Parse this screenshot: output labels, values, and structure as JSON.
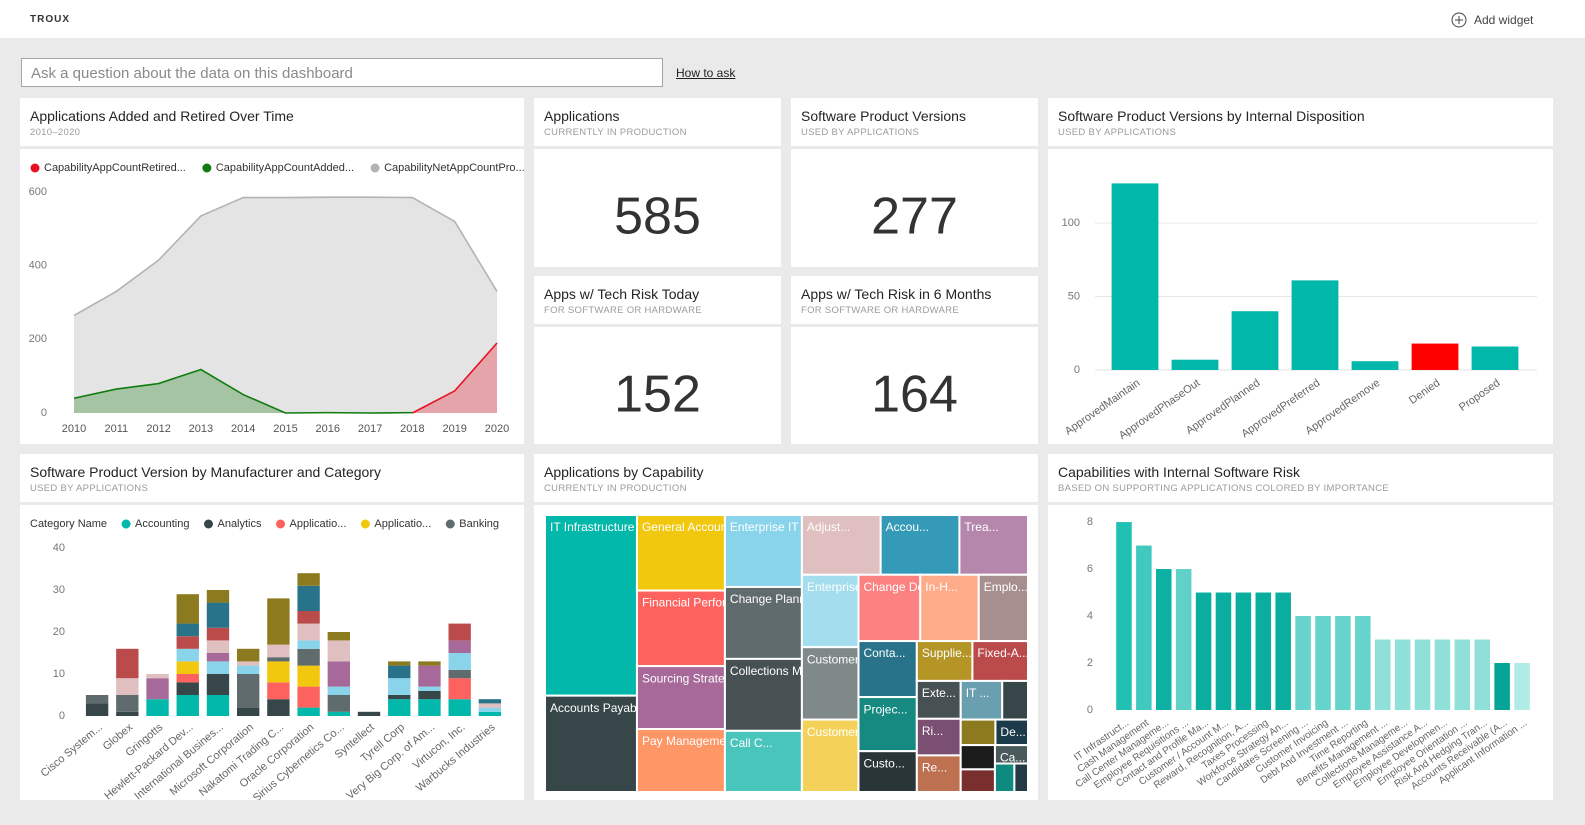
{
  "header": {
    "brand": "TROUX",
    "add_widget": "Add widget"
  },
  "qna": {
    "placeholder": "Ask a question about the data on this dashboard",
    "help": "How to ask"
  },
  "chart_data": [
    {
      "type": "area",
      "title": "Applications Added and Retired Over Time",
      "subtitle": "2010–2020",
      "x": [
        2010,
        2011,
        2012,
        2013,
        2014,
        2015,
        2016,
        2017,
        2018,
        2019,
        2020
      ],
      "xlim": [
        2010,
        2020
      ],
      "xticks": [
        2010,
        2011,
        2012,
        2013,
        2014,
        2015,
        2016,
        2017,
        2018,
        2019,
        2020
      ],
      "ylim": [
        0,
        600
      ],
      "yticks": [
        0,
        200,
        400,
        600
      ],
      "grid": false,
      "series": [
        {
          "name": "CapabilityAppCountRetired...",
          "color": "#e81123",
          "values": [
            null,
            null,
            null,
            null,
            null,
            null,
            null,
            null,
            0,
            60,
            190
          ]
        },
        {
          "name": "CapabilityAppCountAdded...",
          "color": "#107c10",
          "values": [
            40,
            65,
            80,
            118,
            50,
            0,
            1,
            0,
            1,
            null,
            null
          ]
        },
        {
          "name": "CapabilityNetAppCountPro...",
          "color": "#b3b3b3",
          "values": [
            265,
            330,
            415,
            535,
            585,
            585,
            586,
            586,
            585,
            520,
            330
          ]
        }
      ]
    },
    {
      "type": "card",
      "title": "Applications",
      "subtitle": "CURRENTLY IN PRODUCTION",
      "value": 585
    },
    {
      "type": "card",
      "title": "Software Product Versions",
      "subtitle": "USED BY APPLICATIONS",
      "value": 277
    },
    {
      "type": "card",
      "title": "Apps w/ Tech Risk Today",
      "subtitle": "FOR SOFTWARE OR HARDWARE",
      "value": 152
    },
    {
      "type": "card",
      "title": "Apps w/ Tech Risk in 6 Months",
      "subtitle": "FOR SOFTWARE OR HARDWARE",
      "value": 164
    },
    {
      "type": "bar",
      "title": "Software Product Versions by Internal Disposition",
      "subtitle": "USED BY APPLICATIONS",
      "categories": [
        "ApprovedMaintain",
        "ApprovedPhaseOut",
        "ApprovedPlanned",
        "ApprovedPreferred",
        "ApprovedRemove",
        "Denied",
        "Proposed"
      ],
      "values": [
        127,
        7,
        40,
        61,
        6,
        18,
        16
      ],
      "colors": [
        "#01b8aa",
        "#01b8aa",
        "#01b8aa",
        "#01b8aa",
        "#01b8aa",
        "#ff0000",
        "#01b8aa"
      ],
      "ylim": [
        0,
        130
      ],
      "yticks": [
        0,
        50,
        100
      ],
      "grid": true
    },
    {
      "type": "stacked-bar",
      "title": "Software Product Version by Manufacturer and Category",
      "subtitle": "USED BY APPLICATIONS",
      "legend_title": "Category Name",
      "categories": [
        "Cisco System...",
        "Globex",
        "Gringotts",
        "Hewlett-Packard Dev...",
        "International Busines...",
        "Microsoft Corporation",
        "Nakatomi Trading C...",
        "Oracle Corporation",
        "Sirius Cybernetics Co...",
        "Syntellect",
        "Tyrell Corp",
        "Very Big Corp. of Am...",
        "Virtucon, Inc.",
        "Warbucks Industries"
      ],
      "ylim": [
        0,
        40
      ],
      "yticks": [
        0,
        10,
        20,
        30,
        40
      ],
      "grid": false,
      "series": [
        {
          "name": "Accounting",
          "color": "#01b8aa",
          "values": [
            0,
            0,
            4,
            5,
            5,
            0,
            0,
            2,
            1,
            0,
            4,
            4,
            4,
            1
          ]
        },
        {
          "name": "Analytics",
          "color": "#374649",
          "values": [
            3,
            1,
            0,
            3,
            5,
            2,
            4,
            0,
            0,
            1,
            1,
            2,
            0,
            0
          ]
        },
        {
          "name": "Applicatio...",
          "color": "#fd625e",
          "values": [
            0,
            0,
            0,
            2,
            0,
            0,
            4,
            5,
            0,
            0,
            0,
            0,
            5,
            0
          ]
        },
        {
          "name": "Applicatio...",
          "color": "#f2c80f",
          "values": [
            0,
            0,
            0,
            3,
            0,
            0,
            5,
            5,
            0,
            0,
            0,
            0,
            0,
            0
          ]
        },
        {
          "name": "Banking",
          "color": "#5f6b6d",
          "values": [
            2,
            4,
            0,
            0,
            0,
            8,
            1,
            4,
            4,
            0,
            0,
            0,
            2,
            0
          ]
        },
        {
          "color": "#8ad4eb",
          "values": [
            0,
            0,
            0,
            3,
            3,
            2,
            0,
            2,
            2,
            0,
            4,
            1,
            4,
            1
          ]
        },
        {
          "color": "#a66999",
          "values": [
            0,
            0,
            5,
            0,
            2,
            0,
            0,
            0,
            6,
            0,
            0,
            5,
            3,
            0
          ]
        },
        {
          "color": "#dfbfbf",
          "values": [
            0,
            4,
            1,
            0,
            3,
            1,
            3,
            4,
            5,
            0,
            0,
            0,
            0,
            1
          ]
        },
        {
          "color": "#bb4a4a",
          "values": [
            0,
            7,
            0,
            3,
            3,
            0,
            0,
            3,
            0,
            0,
            0,
            0,
            4,
            0
          ]
        },
        {
          "color": "#28738a",
          "values": [
            0,
            0,
            0,
            3,
            6,
            0,
            0,
            6,
            0,
            0,
            3,
            0,
            0,
            1
          ]
        },
        {
          "color": "#8c7a1e",
          "values": [
            0,
            0,
            0,
            7,
            3,
            3,
            11,
            3,
            2,
            0,
            1,
            1,
            0,
            0
          ]
        }
      ]
    },
    {
      "type": "treemap",
      "title": "Applications by Capability",
      "subtitle": "CURRENTLY IN PRODUCTION",
      "categories": [
        "IT Infrastructure Opera...",
        "Accounts Payable (AP) ...",
        "General Accounting Pe...",
        "Financial Performance ...",
        "Sourcing Strate...",
        "Pay Manageme...",
        "Enterprise IT St...",
        "Change Planning",
        "Collections Ma...",
        "Call C...",
        "Adjust...",
        "Accou...",
        "Trea...",
        "Enterprise Ar...",
        "Customer In...",
        "Customer / ...",
        "Change Desi...",
        "In-H...",
        "Emplo...",
        "Conta...",
        "Projec...",
        "Custo...",
        "Supplie...",
        "Fixed-A...",
        "Exte...",
        "Ri...",
        "Re...",
        "IT ...",
        null,
        null,
        "De...",
        null,
        null,
        "Ca...",
        null,
        null
      ],
      "values": [
        30,
        16,
        12,
        12,
        10,
        10,
        10,
        10,
        10,
        8.5,
        8.5,
        8.5,
        7.4,
        7.4,
        7.4,
        7.4,
        7.4,
        7,
        5.9,
        5.9,
        5.7,
        4.3,
        4,
        4,
        3,
        2.9,
        2.9,
        2.9,
        1.8,
        1.6,
        1.5,
        1.5,
        1.4,
        1.1,
        1,
        0.7
      ],
      "colors": [
        "#01b8aa",
        "#374649",
        "#f2c80f",
        "#fd625e",
        "#a66999",
        "#fe9666",
        "#8ad4eb",
        "#5f6b6d",
        "#475052",
        "#4ac5bb",
        "#dfbfbf",
        "#3599b8",
        "#b687ac",
        "#a4ddee",
        "#7f898a",
        "#f4d25a",
        "#fb8281",
        "#fdab89",
        "#a78f8f",
        "#28738a",
        "#168980",
        "#293537",
        "#b59525",
        "#bb4a4a",
        "#475052",
        "#7b4f71",
        "#bd7150",
        "#6a9fb0",
        "#374649",
        "#8c7a1e",
        "#1c3b4a",
        "#1b1b1b",
        "#7a2f2f",
        "#4a5a5c",
        "#0e8a7f",
        "#233b44"
      ]
    },
    {
      "type": "bar",
      "title": "Capabilities with Internal Software Risk",
      "subtitle": "BASED ON SUPPORTING APPLICATIONS COLORED BY IMPORTANCE",
      "categories": [
        "IT Infrastruct...",
        "Cash Management",
        "Call Center Manageme...",
        "Employee Requisitions ...",
        "Contact and Profile Ma...",
        "Customer / Account M...",
        "Reward, Recognition, A...",
        "Taxes Processing",
        "Workforce Strategy An...",
        "Candidates Screening ...",
        "Customer Invoicing",
        "Debt And Investment ...",
        "Time Reporting",
        "Benefits Management ...",
        "Collections Manageme...",
        "Employee Assistance A...",
        "Employee Developmen...",
        "Employee Orientation ...",
        "Risk And Hedging Tran...",
        "Accounts Receivable (A...",
        "Applicant Information ..."
      ],
      "values": [
        8,
        7,
        6,
        6,
        5,
        5,
        5,
        5,
        5,
        4,
        4,
        4,
        4,
        3,
        3,
        3,
        3,
        3,
        3,
        2,
        2
      ],
      "colors": [
        "#20c0b3",
        "#40c9be",
        "#0db1a3",
        "#5fd1c8",
        "#0aae9f",
        "#0aae9f",
        "#0aae9f",
        "#0aae9f",
        "#0aae9f",
        "#66d4cc",
        "#66d4cc",
        "#66d4cc",
        "#66d4cc",
        "#8ee0d9",
        "#8ee0d9",
        "#8ee0d9",
        "#8ee0d9",
        "#8ee0d9",
        "#8ee0d9",
        "#04a596",
        "#b0ebe6"
      ],
      "ylim": [
        0,
        8.3
      ],
      "yticks": [
        0,
        2,
        4,
        6,
        8
      ],
      "grid": false
    }
  ]
}
